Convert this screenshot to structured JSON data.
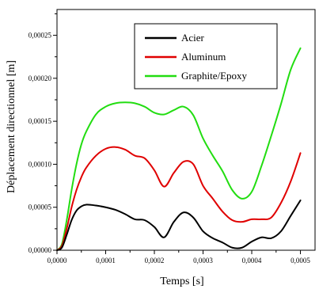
{
  "chart_data": {
    "type": "line",
    "title": "",
    "xlabel": "Temps [s]",
    "ylabel": "Déplacement directionnel [m]",
    "xlim": [
      0,
      0.00053
    ],
    "ylim": [
      0,
      0.00028
    ],
    "x_ticks": [
      0,
      0.0001,
      0.0002,
      0.0003,
      0.0004,
      0.0005
    ],
    "x_tick_labels": [
      "0,0000",
      "0,0001",
      "0,0002",
      "0,0003",
      "0,0004",
      "0,0005"
    ],
    "y_ticks": [
      0,
      5e-05,
      0.0001,
      0.00015,
      0.0002,
      0.00025
    ],
    "y_tick_labels": [
      "0,00000",
      "0,00005",
      "0,00010",
      "0,00015",
      "0,00020",
      "0,00025"
    ],
    "grid": false,
    "legend_position": "top-right",
    "series": [
      {
        "name": "Acier",
        "color": "#000000",
        "x": [
          0,
          1e-05,
          2e-05,
          3e-05,
          4e-05,
          5e-05,
          6e-05,
          8e-05,
          0.0001,
          0.00012,
          0.00014,
          0.00016,
          0.00018,
          0.0002,
          0.00022,
          0.00024,
          0.00026,
          0.00028,
          0.0003,
          0.00032,
          0.00034,
          0.00036,
          0.00038,
          0.0004,
          0.00042,
          0.00044,
          0.00046,
          0.00048,
          0.0005
        ],
        "y": [
          0,
          3e-06,
          1.8e-05,
          3.5e-05,
          4.6e-05,
          5.1e-05,
          5.3e-05,
          5.2e-05,
          5e-05,
          4.7e-05,
          4.2e-05,
          3.6e-05,
          3.5e-05,
          2.7e-05,
          1.5e-05,
          3.3e-05,
          4.4e-05,
          3.8e-05,
          2.2e-05,
          1.4e-05,
          9e-06,
          3e-06,
          3e-06,
          1e-05,
          1.5e-05,
          1.4e-05,
          2.2e-05,
          4e-05,
          5.8e-05
        ]
      },
      {
        "name": "Aluminum",
        "color": "#e00000",
        "x": [
          0,
          1e-05,
          2e-05,
          3e-05,
          4e-05,
          5e-05,
          6e-05,
          8e-05,
          0.0001,
          0.00012,
          0.00014,
          0.00016,
          0.00018,
          0.0002,
          0.00022,
          0.00024,
          0.00026,
          0.00028,
          0.0003,
          0.00032,
          0.00034,
          0.00036,
          0.00038,
          0.0004,
          0.00042,
          0.00044,
          0.00046,
          0.00048,
          0.0005
        ],
        "y": [
          0,
          5e-06,
          2.5e-05,
          5e-05,
          7e-05,
          8.5e-05,
          9.6e-05,
          0.00011,
          0.000118,
          0.00012,
          0.000117,
          0.00011,
          0.000107,
          9.3e-05,
          7.4e-05,
          9e-05,
          0.000103,
          0.0001,
          7.5e-05,
          6e-05,
          4.5e-05,
          3.5e-05,
          3.3e-05,
          3.6e-05,
          3.6e-05,
          3.8e-05,
          5.5e-05,
          8e-05,
          0.000113
        ]
      },
      {
        "name": "Graphite/Epoxy",
        "color": "#22dd11",
        "x": [
          0,
          1e-05,
          2e-05,
          3e-05,
          4e-05,
          5e-05,
          6e-05,
          8e-05,
          0.0001,
          0.00012,
          0.00014,
          0.00016,
          0.00018,
          0.0002,
          0.00022,
          0.00024,
          0.00026,
          0.00028,
          0.0003,
          0.00032,
          0.00034,
          0.00036,
          0.00038,
          0.0004,
          0.00042,
          0.00044,
          0.00046,
          0.00048,
          0.0005
        ],
        "y": [
          0,
          7e-06,
          3.5e-05,
          7e-05,
          0.0001,
          0.000123,
          0.000138,
          0.000158,
          0.000167,
          0.000171,
          0.000172,
          0.000171,
          0.000167,
          0.00016,
          0.000158,
          0.000163,
          0.000167,
          0.000157,
          0.00013,
          0.00011,
          9.2e-05,
          7e-05,
          6e-05,
          6.8e-05,
          9.8e-05,
          0.000133,
          0.00017,
          0.00021,
          0.000235
        ]
      }
    ]
  }
}
